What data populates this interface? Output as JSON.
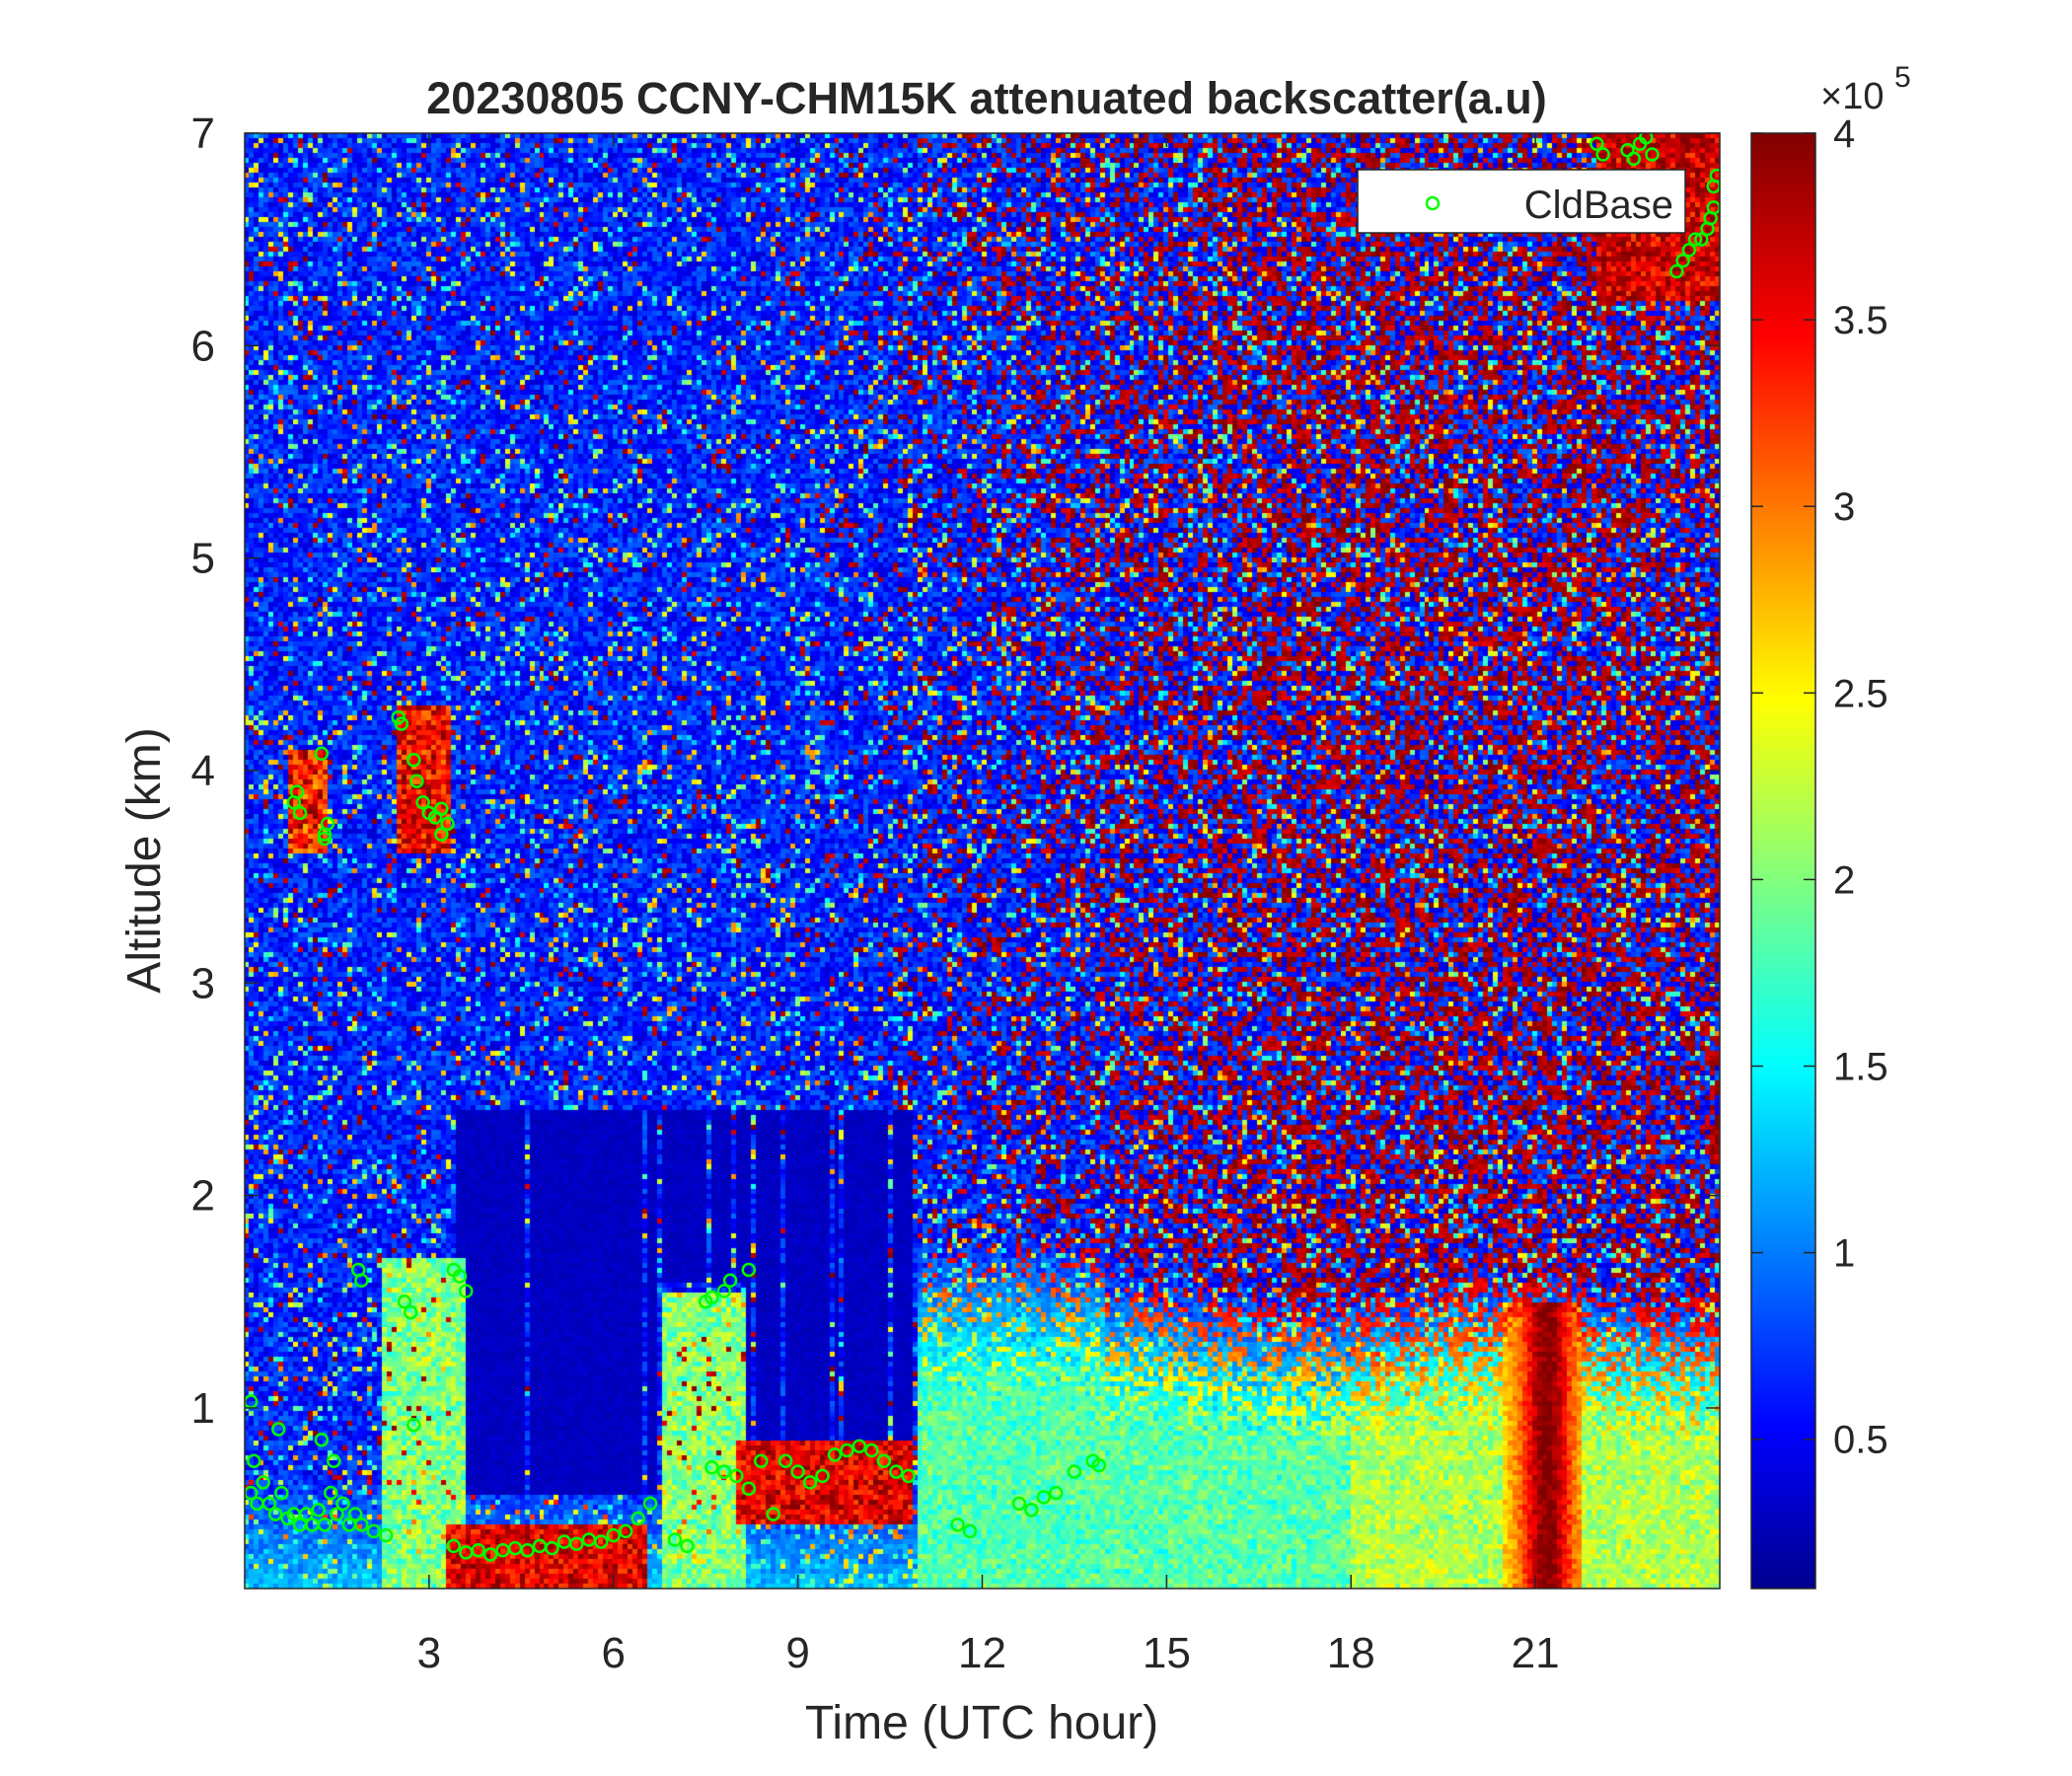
{
  "chart_data": {
    "type": "heatmap",
    "title": "20230805 CCNY-CHM15K attenuated backscatter(a.u)",
    "xlabel": "Time (UTC hour)",
    "ylabel": "Altitude (km)",
    "xlim": [
      0,
      24
    ],
    "ylim": [
      0.15,
      7
    ],
    "x_ticks": [
      3,
      6,
      9,
      12,
      15,
      18,
      21
    ],
    "y_ticks": [
      1,
      2,
      3,
      4,
      5,
      6,
      7
    ],
    "colorbar": {
      "colormap": "jet",
      "range": [
        0.1,
        4
      ],
      "ticks": [
        0.5,
        1,
        1.5,
        2,
        2.5,
        3,
        3.5,
        4
      ],
      "tick_labels": [
        "0.5",
        "1",
        "1.5",
        "2",
        "2.5",
        "3",
        "3.5",
        "4"
      ],
      "exponent_base": "×10",
      "exponent_power": "5"
    },
    "legend": {
      "placement": "top-right",
      "entries": [
        "CldBase"
      ]
    },
    "series": [
      {
        "name": "CldBase",
        "marker": "circle",
        "color": "#00ff00",
        "points": [
          [
            0.1,
            0.6
          ],
          [
            0.2,
            0.55
          ],
          [
            0.3,
            0.65
          ],
          [
            0.4,
            0.55
          ],
          [
            0.5,
            0.5
          ],
          [
            0.6,
            0.6
          ],
          [
            0.7,
            0.48
          ],
          [
            0.8,
            0.5
          ],
          [
            0.9,
            0.45
          ],
          [
            1.0,
            0.5
          ],
          [
            1.1,
            0.45
          ],
          [
            1.2,
            0.52
          ],
          [
            1.3,
            0.45
          ],
          [
            1.4,
            0.6
          ],
          [
            1.5,
            0.5
          ],
          [
            1.6,
            0.55
          ],
          [
            1.7,
            0.45
          ],
          [
            1.8,
            0.5
          ],
          [
            1.9,
            0.45
          ],
          [
            2.1,
            0.42
          ],
          [
            2.3,
            0.4
          ],
          [
            0.15,
            0.75
          ],
          [
            0.1,
            1.03
          ],
          [
            0.55,
            0.9
          ],
          [
            1.25,
            0.85
          ],
          [
            1.45,
            0.75
          ],
          [
            0.8,
            3.85
          ],
          [
            0.85,
            3.9
          ],
          [
            0.9,
            3.8
          ],
          [
            1.25,
            4.08
          ],
          [
            1.3,
            3.7
          ],
          [
            1.35,
            3.75
          ],
          [
            1.3,
            3.68
          ],
          [
            2.5,
            4.25
          ],
          [
            2.55,
            4.22
          ],
          [
            2.75,
            4.05
          ],
          [
            2.8,
            3.95
          ],
          [
            2.9,
            3.85
          ],
          [
            3.0,
            3.8
          ],
          [
            3.1,
            3.78
          ],
          [
            3.2,
            3.82
          ],
          [
            3.3,
            3.75
          ],
          [
            3.2,
            3.7
          ],
          [
            1.85,
            1.65
          ],
          [
            1.9,
            1.6
          ],
          [
            2.6,
            1.5
          ],
          [
            2.7,
            1.45
          ],
          [
            3.4,
            1.65
          ],
          [
            3.5,
            1.62
          ],
          [
            3.6,
            1.55
          ],
          [
            2.75,
            0.92
          ],
          [
            3.4,
            0.35
          ],
          [
            3.6,
            0.32
          ],
          [
            3.8,
            0.33
          ],
          [
            4.0,
            0.31
          ],
          [
            4.2,
            0.33
          ],
          [
            4.4,
            0.34
          ],
          [
            4.6,
            0.33
          ],
          [
            4.8,
            0.35
          ],
          [
            5.0,
            0.34
          ],
          [
            5.2,
            0.37
          ],
          [
            5.4,
            0.36
          ],
          [
            5.6,
            0.38
          ],
          [
            5.8,
            0.37
          ],
          [
            6.0,
            0.4
          ],
          [
            6.2,
            0.42
          ],
          [
            6.4,
            0.48
          ],
          [
            6.6,
            0.55
          ],
          [
            7.0,
            0.38
          ],
          [
            7.2,
            0.35
          ],
          [
            7.5,
            1.5
          ],
          [
            7.6,
            1.52
          ],
          [
            7.8,
            1.55
          ],
          [
            7.9,
            1.6
          ],
          [
            8.2,
            1.65
          ],
          [
            7.6,
            0.72
          ],
          [
            7.8,
            0.7
          ],
          [
            8.0,
            0.68
          ],
          [
            8.2,
            0.62
          ],
          [
            8.4,
            0.75
          ],
          [
            8.6,
            0.5
          ],
          [
            8.8,
            0.75
          ],
          [
            9.0,
            0.7
          ],
          [
            9.2,
            0.65
          ],
          [
            9.4,
            0.68
          ],
          [
            9.6,
            0.78
          ],
          [
            9.8,
            0.8
          ],
          [
            10.0,
            0.82
          ],
          [
            10.2,
            0.8
          ],
          [
            10.4,
            0.75
          ],
          [
            10.6,
            0.7
          ],
          [
            10.8,
            0.68
          ],
          [
            11.6,
            0.45
          ],
          [
            11.8,
            0.42
          ],
          [
            12.6,
            0.55
          ],
          [
            12.8,
            0.52
          ],
          [
            13.0,
            0.58
          ],
          [
            13.2,
            0.6
          ],
          [
            13.5,
            0.7
          ],
          [
            13.8,
            0.75
          ],
          [
            13.9,
            0.73
          ],
          [
            22.0,
            6.95
          ],
          [
            22.1,
            6.9
          ],
          [
            22.5,
            6.92
          ],
          [
            22.6,
            6.88
          ],
          [
            22.7,
            6.95
          ],
          [
            22.8,
            6.98
          ],
          [
            22.9,
            6.9
          ],
          [
            23.3,
            6.35
          ],
          [
            23.4,
            6.4
          ],
          [
            23.5,
            6.45
          ],
          [
            23.6,
            6.5
          ],
          [
            23.7,
            6.5
          ],
          [
            23.8,
            6.55
          ],
          [
            23.85,
            6.6
          ],
          [
            23.9,
            6.65
          ],
          [
            23.95,
            6.8
          ],
          [
            23.9,
            6.75
          ]
        ]
      }
    ]
  }
}
